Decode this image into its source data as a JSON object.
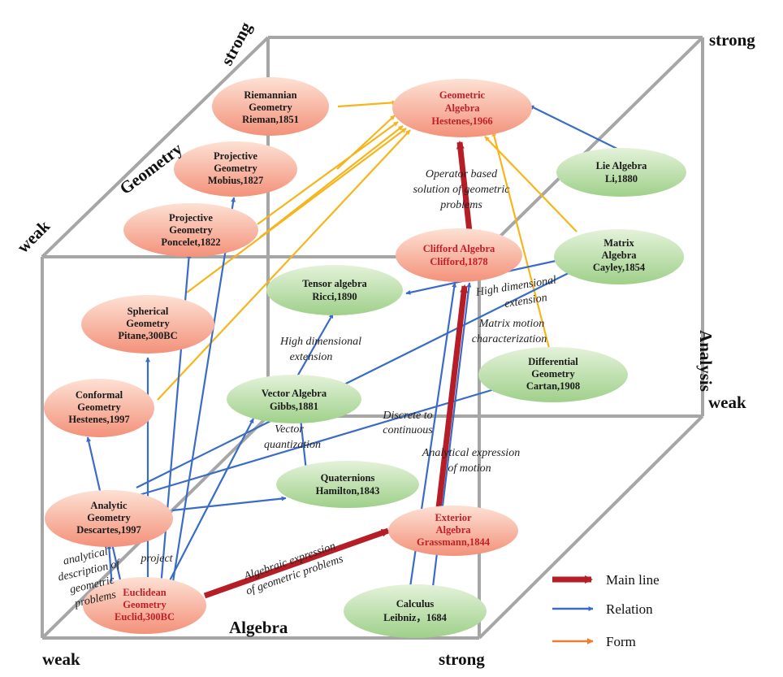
{
  "axes": {
    "geometry": "Geometry",
    "algebra": "Algebra",
    "analysis": "Analysis",
    "weak": "weak",
    "strong": "strong"
  },
  "colors": {
    "main": "#b51e26",
    "relation": "#3a6cc6",
    "form": "#f5b51b",
    "form_legend": "#ed7d31",
    "pink_top": "#fde1d4",
    "pink_bottom": "#f3917a",
    "green_top": "#e4f2da",
    "green_bottom": "#9fd08a",
    "cube": "#a6a6a6"
  },
  "nodes": {
    "riemann": [
      "Riemannian",
      "Geometry",
      "Rieman,1851"
    ],
    "ga": [
      "Geometric",
      "Algebra",
      "Hestenes,1966"
    ],
    "proj_m": [
      "Projective",
      "Geometry",
      "Mobius,1827"
    ],
    "lie": [
      "Lie Algebra",
      "Li,1880"
    ],
    "proj_p": [
      "Projective",
      "Geometry",
      "Poncelet,1822"
    ],
    "clifford": [
      "Clifford Algebra",
      "Clifford,1878"
    ],
    "matrix": [
      "Matrix",
      "Algebra",
      "Cayley,1854"
    ],
    "tensor": [
      "Tensor algebra",
      "Ricci,1890"
    ],
    "spherical": [
      "Spherical",
      "Geometry",
      "Pitane,300BC"
    ],
    "diffgeo": [
      "Differential",
      "Geometry",
      "Cartan,1908"
    ],
    "conformal": [
      "Conformal",
      "Geometry",
      "Hestenes,1997"
    ],
    "vector": [
      "Vector Algebra",
      "Gibbs,1881"
    ],
    "quaternion": [
      "Quaternions",
      "Hamilton,1843"
    ],
    "analytic": [
      "Analytic",
      "Geometry",
      "Descartes,1997"
    ],
    "exterior": [
      "Exterior",
      "Algebra",
      "Grassmann,1844"
    ],
    "euclid": [
      "Euclidean",
      "Geometry",
      "Euclid,300BC"
    ],
    "calculus": [
      "Calculus",
      "Leibniz，1684"
    ]
  },
  "edge_labels": {
    "operator": [
      "Operator based",
      "solution of geometric",
      "problems"
    ],
    "high_dim_top": [
      "High dimensional",
      "extension"
    ],
    "matrix_motion": [
      "Matrix motion",
      "characterization"
    ],
    "high_dim_left": [
      "High dimensional",
      "extension"
    ],
    "discrete": [
      "Discrete to",
      "continuous"
    ],
    "vector_q": [
      "Vector",
      "quantization"
    ],
    "analytical_motion": [
      "Analytical expression",
      "of motion"
    ],
    "analytical_desc": [
      "analytical",
      "description of",
      "geometric",
      "problems"
    ],
    "project": "project",
    "algebraic_expr": [
      "Algebraic expression",
      "of geometric problems"
    ]
  },
  "legend": {
    "main": "Main line",
    "relation": "Relation",
    "form": "Form"
  }
}
